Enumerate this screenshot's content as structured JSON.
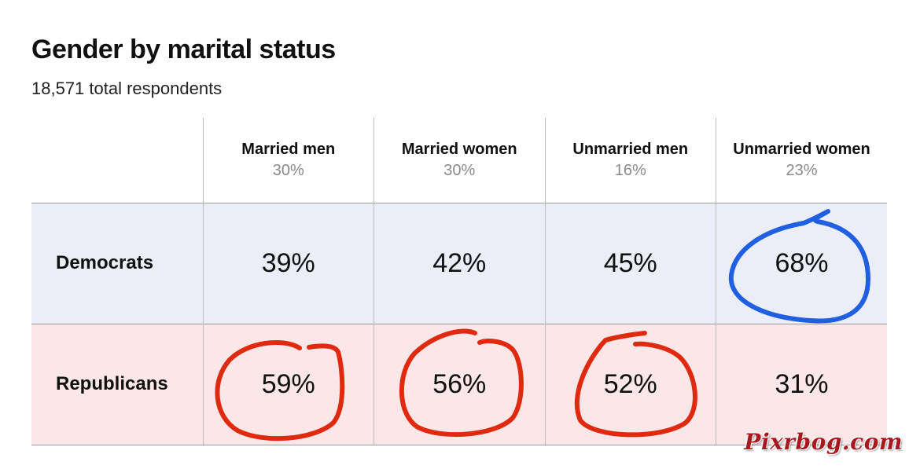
{
  "title": "Gender by marital status",
  "subtitle": "18,571 total respondents",
  "chart_data": {
    "type": "table",
    "columns": [
      {
        "label": "Married men",
        "share": "30%"
      },
      {
        "label": "Married women",
        "share": "30%"
      },
      {
        "label": "Unmarried men",
        "share": "16%"
      },
      {
        "label": "Unmarried women",
        "share": "23%"
      }
    ],
    "rows": [
      {
        "label": "Democrats",
        "values": [
          "39%",
          "42%",
          "45%",
          "68%"
        ],
        "circled": [
          false,
          false,
          false,
          true
        ],
        "circle_color": "#1f5fe0"
      },
      {
        "label": "Republicans",
        "values": [
          "59%",
          "56%",
          "52%",
          "31%"
        ],
        "circled": [
          true,
          true,
          true,
          false
        ],
        "circle_color": "#e02a10"
      }
    ],
    "colors": {
      "democrats_row_bg": "#eceef7",
      "republicans_row_bg": "#fbe7e7"
    }
  },
  "watermark": "Pixrbog.com"
}
